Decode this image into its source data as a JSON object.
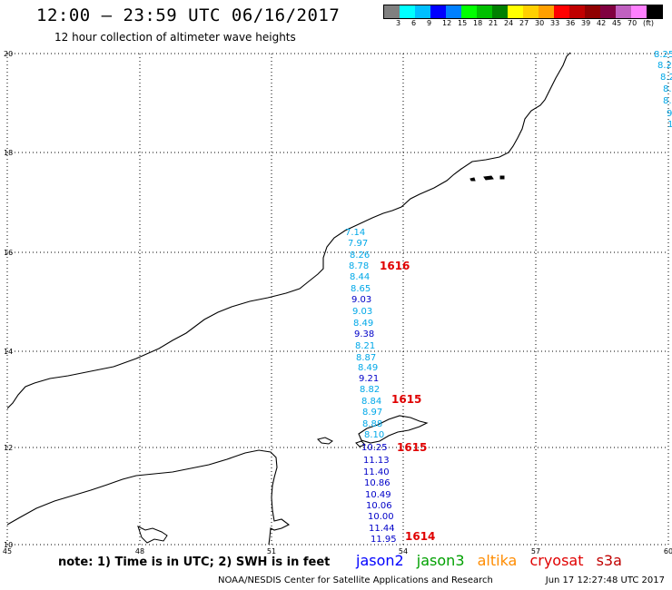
{
  "header": {
    "title": "12:00 – 23:59 UTC 06/16/2017",
    "subtitle": "12 hour collection of altimeter wave heights"
  },
  "colorbar": {
    "colors": [
      "#808080",
      "#00ffff",
      "#00bfff",
      "#0000ff",
      "#0080ff",
      "#00ff00",
      "#00c000",
      "#008000",
      "#ffff00",
      "#ffd000",
      "#ffa000",
      "#ff0000",
      "#c00000",
      "#900000",
      "#800040",
      "#c060c0",
      "#ff80ff",
      "#000000"
    ],
    "labels": [
      "3",
      "6",
      "9",
      "12",
      "15",
      "18",
      "21",
      "24",
      "27",
      "30",
      "33",
      "36",
      "39",
      "42",
      "45",
      "70",
      "(ft)"
    ]
  },
  "map": {
    "lon_ticks": [
      "45",
      "48",
      "51",
      "54",
      "57",
      "60"
    ],
    "lat_ticks": [
      "20",
      "18",
      "16",
      "14",
      "12",
      "10"
    ],
    "lon_range": [
      45,
      60
    ],
    "lat_range": [
      10,
      20
    ],
    "track_colors": {
      "light": "#00a8e8",
      "dark": "#0000c8"
    },
    "swh_labels": [
      {
        "v": "7.14",
        "c": "light"
      },
      {
        "v": "7.97",
        "c": "light"
      },
      {
        "v": "8.26",
        "c": "light"
      },
      {
        "v": "8.78",
        "c": "light"
      },
      {
        "v": "8.44",
        "c": "light"
      },
      {
        "v": "8.65",
        "c": "light"
      },
      {
        "v": "9.03",
        "c": "dark"
      },
      {
        "v": "9.03",
        "c": "light"
      },
      {
        "v": "8.49",
        "c": "light"
      },
      {
        "v": "9.38",
        "c": "dark"
      },
      {
        "v": "8.21",
        "c": "light"
      },
      {
        "v": "8.87",
        "c": "light"
      },
      {
        "v": "8.49",
        "c": "light"
      },
      {
        "v": "9.21",
        "c": "dark"
      },
      {
        "v": "8.82",
        "c": "light"
      },
      {
        "v": "8.84",
        "c": "light"
      },
      {
        "v": "8.97",
        "c": "light"
      },
      {
        "v": "8.88",
        "c": "light"
      },
      {
        "v": "8.10",
        "c": "light"
      },
      {
        "v": "10.25",
        "c": "dark"
      },
      {
        "v": "11.13",
        "c": "dark"
      },
      {
        "v": "11.40",
        "c": "dark"
      },
      {
        "v": "10.86",
        "c": "dark"
      },
      {
        "v": "10.49",
        "c": "dark"
      },
      {
        "v": "10.06",
        "c": "dark"
      },
      {
        "v": "10.00",
        "c": "dark"
      },
      {
        "v": "11.44",
        "c": "dark"
      },
      {
        "v": "11.95",
        "c": "dark"
      }
    ],
    "edge_labels": [
      "8.25",
      "8.2",
      "8.2",
      "8.",
      "8.",
      "9",
      "1"
    ],
    "pass_times": [
      "1616",
      "1615",
      "1615",
      "1614"
    ]
  },
  "note": "note: 1) Time is in UTC; 2) SWH is in feet",
  "legend": [
    {
      "name": "jason2",
      "color": "#0000ff"
    },
    {
      "name": "jason3",
      "color": "#00a000"
    },
    {
      "name": "altika",
      "color": "#ff8c00"
    },
    {
      "name": "cryosat",
      "color": "#e00000"
    },
    {
      "name": "s3a",
      "color": "#c00000"
    }
  ],
  "footer": {
    "credit": "NOAA/NESDIS Center for Satellite Applications and Research",
    "timestamp": "Jun 17 12:27:48 UTC 2017"
  }
}
